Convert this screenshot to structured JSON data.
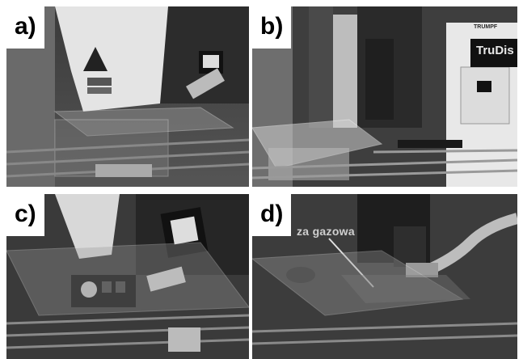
{
  "panels": [
    {
      "id": "a",
      "label": "a)"
    },
    {
      "id": "b",
      "label": "b)"
    },
    {
      "id": "c",
      "label": "c)"
    },
    {
      "id": "d",
      "label": "d)"
    }
  ],
  "panel_b": {
    "brand_small": "TRUMPF",
    "brand_large": "TruDis"
  },
  "panel_d": {
    "caption": "za gazowa"
  },
  "colors": {
    "background": "#ffffff",
    "label_bg": "#ffffff",
    "label_text": "#000000"
  }
}
